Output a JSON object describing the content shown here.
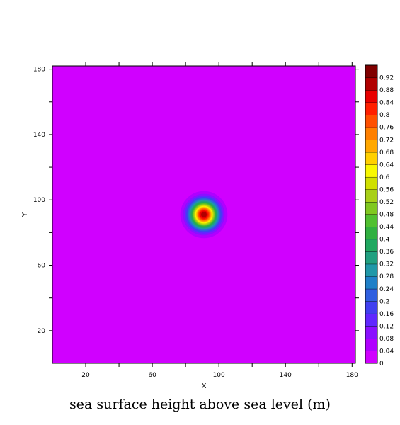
{
  "chart_data": {
    "type": "heatmap",
    "title": "sea surface height above sea level (m)",
    "xlabel": "X",
    "ylabel": "Y",
    "xlim": [
      0,
      182
    ],
    "ylim": [
      0,
      182
    ],
    "x_ticks": [
      20,
      60,
      100,
      140,
      180
    ],
    "y_ticks": [
      20,
      60,
      100,
      140,
      180
    ],
    "field": {
      "shape": "gaussian",
      "center_x": 91,
      "center_y": 91,
      "peak_value": 0.92,
      "radius_e_fold": 8,
      "background_value": 0
    },
    "colorbar": {
      "min": 0,
      "max": 0.92,
      "step": 0.04,
      "tick_labels": [
        "0",
        "0.04",
        "0.08",
        "0.12",
        "0.16",
        "0.2",
        "0.24",
        "0.28",
        "0.32",
        "0.36",
        "0.4",
        "0.44",
        "0.48",
        "0.52",
        "0.56",
        "0.6",
        "0.64",
        "0.68",
        "0.72",
        "0.76",
        "0.8",
        "0.84",
        "0.88",
        "0.92"
      ],
      "colors": [
        "#d000ff",
        "#b000ff",
        "#8a10ff",
        "#6028ff",
        "#4040f0",
        "#3060e0",
        "#2080c8",
        "#2098a8",
        "#20a080",
        "#20a860",
        "#30b040",
        "#50c030",
        "#80c820",
        "#a8d018",
        "#d0e000",
        "#f8f800",
        "#ffd000",
        "#ffa800",
        "#ff8000",
        "#ff5000",
        "#ff2000",
        "#e80000",
        "#b00000",
        "#800000"
      ]
    }
  }
}
